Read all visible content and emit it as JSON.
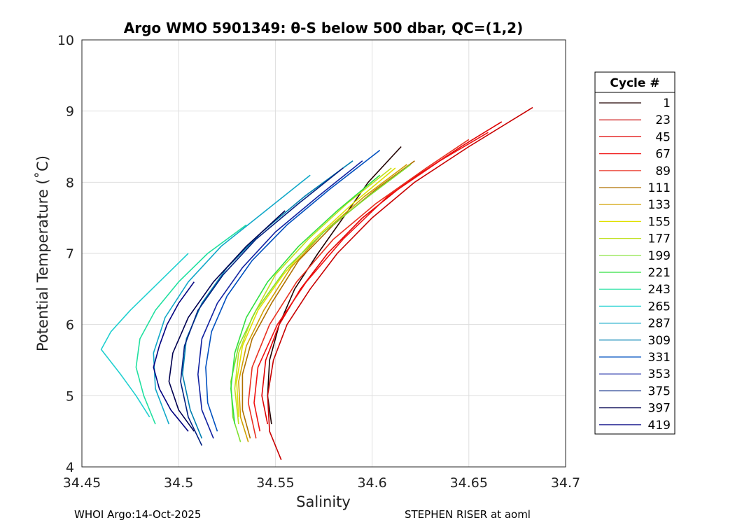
{
  "chart_data": {
    "type": "line",
    "title": "Argo WMO 5901349: θ-S below 500 dbar,  QC=(1,2)",
    "xlabel": "Salinity",
    "ylabel": "Potential Temperature (˚C)",
    "xlim": [
      34.45,
      34.7
    ],
    "ylim": [
      4,
      10
    ],
    "xticks": [
      "34.45",
      "34.5",
      "34.55",
      "34.6",
      "34.65",
      "34.7"
    ],
    "yticks": [
      "4",
      "5",
      "6",
      "7",
      "8",
      "9",
      "10"
    ],
    "grid": true,
    "legend": {
      "title": "Cycle #",
      "placement": "right",
      "entries": [
        {
          "label": "1",
          "color": "#200000"
        },
        {
          "label": "23",
          "color": "#c80000"
        },
        {
          "label": "45",
          "color": "#e00000"
        },
        {
          "label": "67",
          "color": "#f01010"
        },
        {
          "label": "89",
          "color": "#e83020"
        },
        {
          "label": "111",
          "color": "#b07000"
        },
        {
          "label": "133",
          "color": "#d0a000"
        },
        {
          "label": "155",
          "color": "#e0e000"
        },
        {
          "label": "177",
          "color": "#c0e020"
        },
        {
          "label": "199",
          "color": "#80e030"
        },
        {
          "label": "221",
          "color": "#30e040"
        },
        {
          "label": "243",
          "color": "#20e0a0"
        },
        {
          "label": "265",
          "color": "#20d0d0"
        },
        {
          "label": "287",
          "color": "#10a8c8"
        },
        {
          "label": "309",
          "color": "#0080b0"
        },
        {
          "label": "331",
          "color": "#0050c0"
        },
        {
          "label": "353",
          "color": "#1020a0"
        },
        {
          "label": "375",
          "color": "#002080"
        },
        {
          "label": "397",
          "color": "#000050"
        },
        {
          "label": "419",
          "color": "#000080"
        }
      ]
    },
    "series": [
      {
        "name": "1",
        "color": "#200000",
        "t": [
          8.5,
          8.0,
          7.5,
          7.0,
          6.5,
          6.0,
          5.5,
          5.0,
          4.6
        ],
        "s": [
          34.615,
          34.598,
          34.585,
          34.572,
          34.56,
          34.552,
          34.547,
          34.546,
          34.548
        ]
      },
      {
        "name": "23",
        "color": "#c80000",
        "t": [
          9.05,
          8.5,
          8.0,
          7.5,
          7.0,
          6.5,
          6.0,
          5.5,
          5.0,
          4.5,
          4.1
        ],
        "s": [
          34.683,
          34.65,
          34.622,
          34.6,
          34.582,
          34.568,
          34.556,
          34.549,
          34.546,
          34.547,
          34.553
        ]
      },
      {
        "name": "45",
        "color": "#e00000",
        "t": [
          8.85,
          8.5,
          8.0,
          7.5,
          7.0,
          6.5,
          6.0,
          5.5,
          5.0,
          4.6
        ],
        "s": [
          34.667,
          34.646,
          34.618,
          34.595,
          34.577,
          34.563,
          34.552,
          34.545,
          34.543,
          34.546
        ]
      },
      {
        "name": "67",
        "color": "#f01010",
        "t": [
          8.7,
          8.3,
          7.8,
          7.2,
          6.6,
          6.0,
          5.4,
          4.9,
          4.5
        ],
        "s": [
          34.66,
          34.635,
          34.608,
          34.585,
          34.566,
          34.551,
          34.541,
          34.539,
          34.542
        ]
      },
      {
        "name": "89",
        "color": "#e83020",
        "t": [
          8.6,
          8.2,
          7.7,
          7.2,
          6.6,
          6.0,
          5.4,
          4.9,
          4.4
        ],
        "s": [
          34.65,
          34.628,
          34.602,
          34.58,
          34.561,
          34.547,
          34.538,
          34.536,
          34.54
        ]
      },
      {
        "name": "111",
        "color": "#b07000",
        "t": [
          8.3,
          7.9,
          7.4,
          6.9,
          6.3,
          5.8,
          5.3,
          4.8,
          4.4
        ],
        "s": [
          34.622,
          34.602,
          34.58,
          34.562,
          34.548,
          34.538,
          34.533,
          34.533,
          34.537
        ]
      },
      {
        "name": "133",
        "color": "#d0a000",
        "t": [
          8.25,
          7.8,
          7.3,
          6.8,
          6.2,
          5.7,
          5.2,
          4.7,
          4.35
        ],
        "s": [
          34.618,
          34.596,
          34.575,
          34.558,
          34.544,
          34.535,
          34.531,
          34.532,
          34.536
        ]
      },
      {
        "name": "155",
        "color": "#e0e000",
        "t": [
          8.2,
          7.7,
          7.2,
          6.7,
          6.2,
          5.7,
          5.2,
          4.7
        ],
        "s": [
          34.612,
          34.59,
          34.57,
          34.554,
          34.541,
          34.533,
          34.53,
          34.531
        ]
      },
      {
        "name": "177",
        "color": "#c0e020",
        "t": [
          8.2,
          7.7,
          7.2,
          6.7,
          6.1,
          5.6,
          5.1,
          4.6
        ],
        "s": [
          34.61,
          34.587,
          34.567,
          34.55,
          34.538,
          34.531,
          34.529,
          34.531
        ]
      },
      {
        "name": "199",
        "color": "#80e030",
        "t": [
          8.25,
          7.8,
          7.3,
          6.8,
          6.2,
          5.7,
          5.2,
          4.7,
          4.35
        ],
        "s": [
          34.62,
          34.598,
          34.575,
          34.556,
          34.54,
          34.531,
          34.527,
          34.528,
          34.532
        ]
      },
      {
        "name": "221",
        "color": "#30e040",
        "t": [
          8.1,
          7.6,
          7.1,
          6.6,
          6.1,
          5.6,
          5.1,
          4.6
        ],
        "s": [
          34.604,
          34.582,
          34.562,
          34.546,
          34.535,
          34.529,
          34.527,
          34.529
        ]
      },
      {
        "name": "243",
        "color": "#20e0a0",
        "t": [
          7.4,
          7.0,
          6.6,
          6.2,
          5.8,
          5.4,
          5.0,
          4.6
        ],
        "s": [
          34.535,
          34.515,
          34.5,
          34.488,
          34.48,
          34.478,
          34.482,
          34.488
        ]
      },
      {
        "name": "265",
        "color": "#20d0d0",
        "t": [
          7.0,
          6.6,
          6.2,
          5.9,
          5.65,
          5.3,
          5.0,
          4.7
        ],
        "s": [
          34.505,
          34.49,
          34.475,
          34.465,
          34.46,
          34.47,
          34.478,
          34.485
        ]
      },
      {
        "name": "287",
        "color": "#10a8c8",
        "t": [
          8.1,
          7.6,
          7.1,
          6.6,
          6.1,
          5.6,
          5.1,
          4.6
        ],
        "s": [
          34.568,
          34.545,
          34.522,
          34.505,
          34.493,
          34.487,
          34.488,
          34.495
        ]
      },
      {
        "name": "309",
        "color": "#0080b0",
        "t": [
          8.3,
          7.8,
          7.3,
          6.8,
          6.3,
          5.8,
          5.3,
          4.8,
          4.4
        ],
        "s": [
          34.59,
          34.565,
          34.543,
          34.525,
          34.512,
          34.504,
          34.502,
          34.506,
          34.512
        ]
      },
      {
        "name": "331",
        "color": "#0050c0",
        "t": [
          8.45,
          7.9,
          7.4,
          6.9,
          6.4,
          5.9,
          5.4,
          4.9,
          4.5
        ],
        "s": [
          34.604,
          34.578,
          34.556,
          34.538,
          34.525,
          34.517,
          34.514,
          34.515,
          34.52
        ]
      },
      {
        "name": "353",
        "color": "#1020a0",
        "t": [
          8.3,
          7.8,
          7.3,
          6.8,
          6.3,
          5.8,
          5.3,
          4.8,
          4.4
        ],
        "s": [
          34.595,
          34.572,
          34.55,
          34.533,
          34.52,
          34.512,
          34.51,
          34.512,
          34.518
        ]
      },
      {
        "name": "375",
        "color": "#002080",
        "t": [
          8.2,
          7.7,
          7.2,
          6.7,
          6.2,
          5.7,
          5.2,
          4.7,
          4.3
        ],
        "s": [
          34.585,
          34.562,
          34.54,
          34.523,
          34.51,
          34.503,
          34.501,
          34.505,
          34.512
        ]
      },
      {
        "name": "397",
        "color": "#000050",
        "t": [
          7.6,
          7.1,
          6.6,
          6.1,
          5.6,
          5.2,
          4.8,
          4.5
        ],
        "s": [
          34.555,
          34.535,
          34.518,
          34.505,
          34.497,
          34.495,
          34.5,
          34.508
        ]
      },
      {
        "name": "419",
        "color": "#000080",
        "t": [
          6.6,
          6.3,
          6.0,
          5.7,
          5.4,
          5.1,
          4.8,
          4.5
        ],
        "s": [
          34.508,
          34.5,
          34.494,
          34.49,
          34.487,
          34.49,
          34.496,
          34.505
        ]
      }
    ]
  },
  "footer": {
    "left": "WHOI Argo:14-Oct-2025",
    "right": "STEPHEN RISER at aoml"
  }
}
